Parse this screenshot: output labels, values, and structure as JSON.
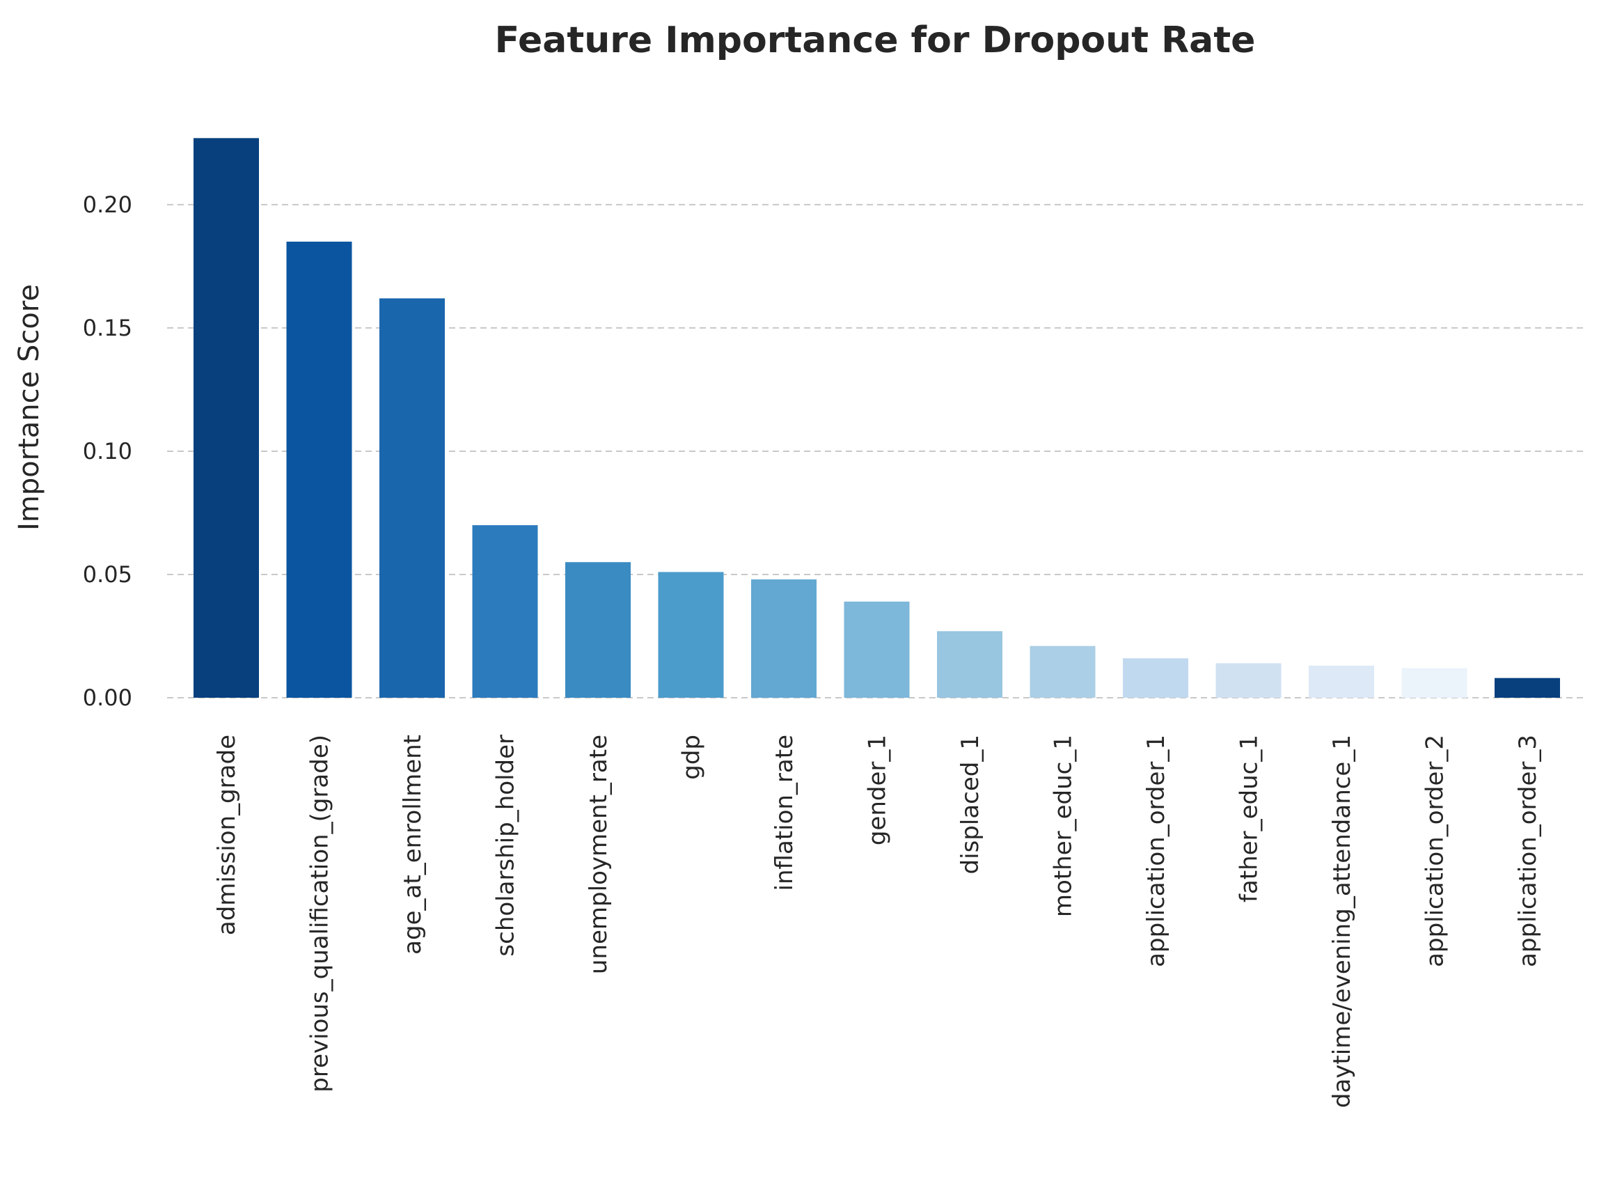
{
  "chart_data": {
    "type": "bar",
    "title": "Feature Importance for Dropout Rate",
    "xlabel": "",
    "ylabel": "Importance Score",
    "ylim": [
      0,
      0.235
    ],
    "yticks": [
      0.0,
      0.05,
      0.1,
      0.15,
      0.2
    ],
    "ytick_labels": [
      "0.00",
      "0.05",
      "0.10",
      "0.15",
      "0.20"
    ],
    "grid": "horizontal dashed",
    "categories": [
      "admission_grade",
      "previous_qualification_(grade)",
      "age_at_enrollment",
      "scholarship_holder",
      "unemployment_rate",
      "gdp",
      "inflation_rate",
      "gender_1",
      "displaced_1",
      "mother_educ_1",
      "application_order_1",
      "father_educ_1",
      "daytime/evening_attendance_1",
      "application_order_2",
      "application_order_3"
    ],
    "values": [
      0.227,
      0.185,
      0.162,
      0.07,
      0.055,
      0.051,
      0.048,
      0.039,
      0.027,
      0.021,
      0.016,
      0.014,
      0.013,
      0.012,
      0.008
    ],
    "colors": [
      "#08407e",
      "#0b55a0",
      "#1a66ad",
      "#2c7bbd",
      "#3a8bc2",
      "#4b9ccb",
      "#62a8d2",
      "#7db7da",
      "#98c5e0",
      "#abcfe6",
      "#c1d9ef",
      "#d0e1f2",
      "#dde9f6",
      "#ebf3fb",
      "#08407e"
    ]
  }
}
